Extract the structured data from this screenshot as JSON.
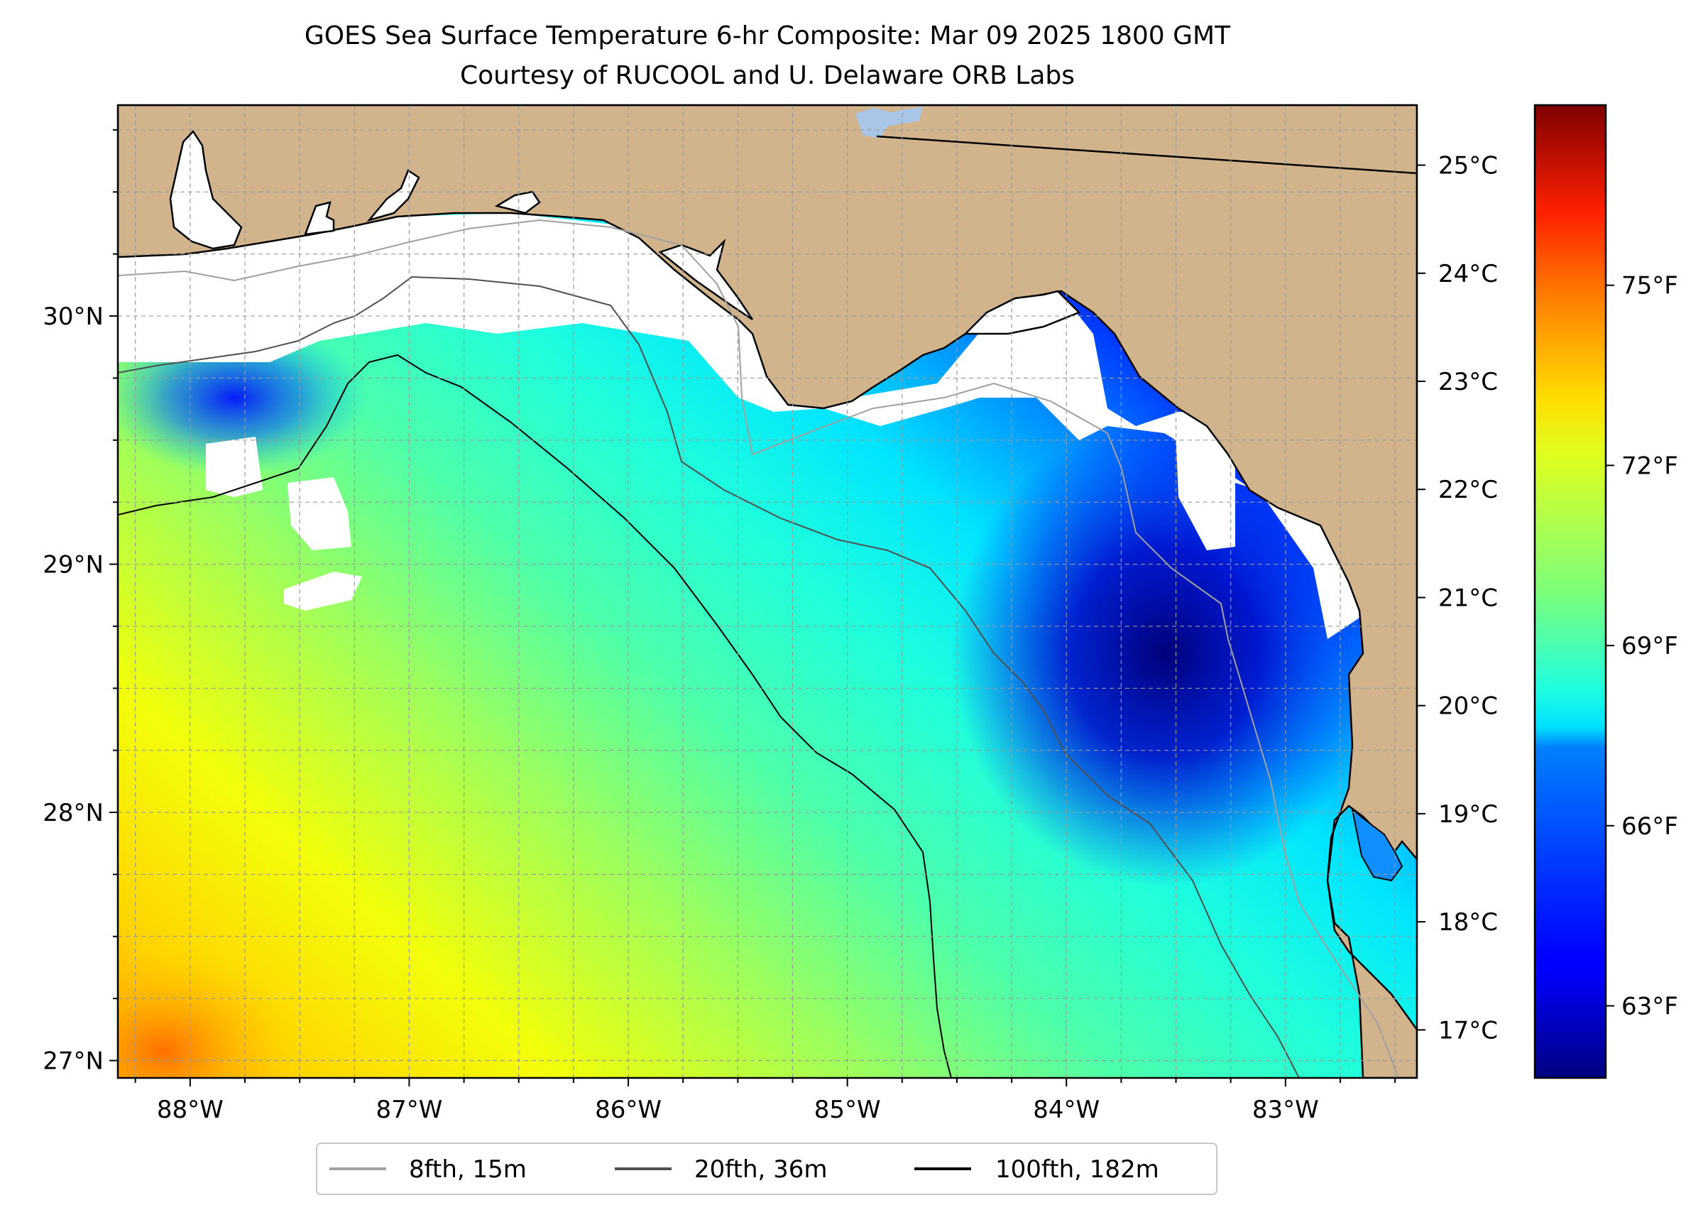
{
  "title": {
    "line1": "GOES Sea Surface Temperature 6-hr Composite: Mar 09 2025 1800 GMT",
    "line2": "Courtesy of RUCOOL and U. Delaware ORB Labs"
  },
  "map": {
    "lon_range": [
      -88.33,
      -82.4
    ],
    "lat_range": [
      26.93,
      30.85
    ],
    "land_color": "#d2b48c",
    "no_data_color": "#ffffff",
    "gridlines": true,
    "lon_ticks": [
      {
        "value": -88,
        "label": "88°W"
      },
      {
        "value": -87,
        "label": "87°W"
      },
      {
        "value": -86,
        "label": "86°W"
      },
      {
        "value": -85,
        "label": "85°W"
      },
      {
        "value": -84,
        "label": "84°W"
      },
      {
        "value": -83,
        "label": "83°W"
      }
    ],
    "lat_ticks": [
      {
        "value": 27,
        "label": "27°N"
      },
      {
        "value": 28,
        "label": "28°N"
      },
      {
        "value": 29,
        "label": "29°N"
      },
      {
        "value": 30,
        "label": "30°N"
      }
    ],
    "celsius_axis": [
      {
        "value": 17,
        "label": "17°C"
      },
      {
        "value": 18,
        "label": "18°C"
      },
      {
        "value": 19,
        "label": "19°C"
      },
      {
        "value": 20,
        "label": "20°C"
      },
      {
        "value": 21,
        "label": "21°C"
      },
      {
        "value": 22,
        "label": "22°C"
      },
      {
        "value": 23,
        "label": "23°C"
      },
      {
        "value": 24,
        "label": "24°C"
      },
      {
        "value": 25,
        "label": "25°C"
      }
    ]
  },
  "colorbar": {
    "range_f": [
      61.8,
      78.0
    ],
    "colormap": "jet",
    "ticks": [
      {
        "value": 63,
        "label": "63°F"
      },
      {
        "value": 66,
        "label": "66°F"
      },
      {
        "value": 69,
        "label": "69°F"
      },
      {
        "value": 72,
        "label": "72°F"
      },
      {
        "value": 75,
        "label": "75°F"
      }
    ]
  },
  "legend": {
    "placement": "bottom-center",
    "entries": [
      {
        "label": "8fth, 15m",
        "color": "#a0a0a0"
      },
      {
        "label": "20fth, 36m",
        "color": "#505050"
      },
      {
        "label": "100fth, 182m",
        "color": "#000000"
      }
    ]
  }
}
